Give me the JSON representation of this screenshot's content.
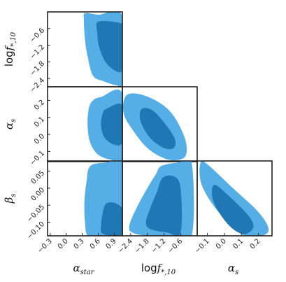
{
  "colors": {
    "outer_contour": "#56aee6",
    "inner_contour": "#1f78b4",
    "frame": "#222222"
  },
  "chart_data": {
    "type": "corner",
    "parameters": [
      {
        "id": "alpha_star",
        "label": "α",
        "label_sub": "star",
        "range": [
          -0.35,
          1.05
        ],
        "ticks": [
          "−0.3",
          "0.0",
          "0.3",
          "0.6",
          "0.9"
        ],
        "tick_values": [
          -0.3,
          0.0,
          0.3,
          0.6,
          0.9
        ]
      },
      {
        "id": "log_f_star_10",
        "label": "log",
        "label_main": "f",
        "label_sub": "*,10",
        "range": [
          -2.7,
          0.0
        ],
        "ticks": [
          "−2.4",
          "−1.8",
          "−1.2",
          "−0.6"
        ],
        "tick_values": [
          -2.4,
          -1.8,
          -1.2,
          -0.6
        ]
      },
      {
        "id": "alpha_s",
        "label": "α",
        "label_sub": "s",
        "range": [
          -0.16,
          0.28
        ],
        "ticks": [
          "−0.1",
          "0.0",
          "0.1",
          "0.2"
        ],
        "tick_values": [
          -0.1,
          0.0,
          0.1,
          0.2
        ]
      },
      {
        "id": "beta_s",
        "label": "β",
        "label_sub": "s",
        "range": [
          -0.14,
          0.08
        ],
        "ticks": [
          "−0.10",
          "−0.05",
          "0.00",
          "0.05"
        ],
        "tick_values": [
          -0.1,
          -0.05,
          0.0,
          0.05
        ]
      }
    ],
    "contour_levels": [
      "68%",
      "95%"
    ],
    "panels": [
      {
        "id": "logf-vs-alphastar",
        "x": "alpha_star",
        "y": "log_f_star_10",
        "outer": [
          [
            0.35,
            -0.05
          ],
          [
            0.6,
            -0.1
          ],
          [
            1.05,
            -0.15
          ],
          [
            1.05,
            -2.55
          ],
          [
            0.95,
            -2.65
          ],
          [
            0.7,
            -2.5
          ],
          [
            0.5,
            -2.3
          ],
          [
            0.4,
            -1.6
          ],
          [
            0.35,
            -1.0
          ],
          [
            0.33,
            -0.3
          ]
        ],
        "inner": [
          [
            0.6,
            -0.35
          ],
          [
            1.0,
            -0.4
          ],
          [
            1.05,
            -0.6
          ],
          [
            1.05,
            -2.0
          ],
          [
            0.95,
            -2.15
          ],
          [
            0.75,
            -1.85
          ],
          [
            0.62,
            -1.3
          ],
          [
            0.58,
            -0.75
          ]
        ]
      },
      {
        "id": "alphas-vs-alphastar",
        "x": "alpha_star",
        "y": "alpha_s",
        "outer": [
          [
            0.65,
            0.22
          ],
          [
            1.05,
            0.24
          ],
          [
            1.05,
            -0.15
          ],
          [
            0.85,
            -0.15
          ],
          [
            0.6,
            -0.12
          ],
          [
            0.45,
            -0.05
          ],
          [
            0.4,
            0.05
          ],
          [
            0.42,
            0.15
          ],
          [
            0.5,
            0.2
          ]
        ],
        "inner": [
          [
            0.75,
            0.15
          ],
          [
            1.05,
            0.17
          ],
          [
            1.05,
            -0.04
          ],
          [
            0.9,
            -0.06
          ],
          [
            0.72,
            -0.02
          ],
          [
            0.65,
            0.05
          ],
          [
            0.68,
            0.12
          ]
        ]
      },
      {
        "id": "betas-vs-alphastar",
        "x": "alpha_star",
        "y": "beta_s",
        "outer": [
          [
            0.45,
            0.065
          ],
          [
            0.75,
            0.075
          ],
          [
            1.05,
            0.075
          ],
          [
            1.05,
            -0.14
          ],
          [
            0.6,
            -0.14
          ],
          [
            0.4,
            -0.14
          ],
          [
            0.35,
            -0.1
          ],
          [
            0.34,
            -0.04
          ],
          [
            0.38,
            0.02
          ]
        ],
        "inner": [
          [
            0.75,
            -0.045
          ],
          [
            1.05,
            -0.06
          ],
          [
            1.05,
            -0.135
          ],
          [
            0.7,
            -0.135
          ],
          [
            0.65,
            -0.11
          ]
        ]
      },
      {
        "id": "alphas-vs-logf",
        "x": "log_f_star_10",
        "y": "alpha_s",
        "outer": [
          [
            -2.6,
            0.22
          ],
          [
            -2.2,
            0.24
          ],
          [
            -1.5,
            0.2
          ],
          [
            -0.9,
            0.12
          ],
          [
            -0.45,
            -0.02
          ],
          [
            -0.4,
            -0.12
          ],
          [
            -0.7,
            -0.15
          ],
          [
            -1.2,
            -0.14
          ],
          [
            -1.8,
            -0.08
          ],
          [
            -2.3,
            0.02
          ],
          [
            -2.65,
            0.12
          ]
        ],
        "inner": [
          [
            -2.0,
            0.15
          ],
          [
            -1.6,
            0.14
          ],
          [
            -1.1,
            0.05
          ],
          [
            -0.8,
            -0.03
          ],
          [
            -0.85,
            -0.08
          ],
          [
            -1.2,
            -0.08
          ],
          [
            -1.7,
            -0.02
          ],
          [
            -2.05,
            0.08
          ]
        ]
      },
      {
        "id": "betas-vs-logf",
        "x": "log_f_star_10",
        "y": "beta_s",
        "outer": [
          [
            -1.3,
            0.065
          ],
          [
            -0.7,
            0.075
          ],
          [
            -0.2,
            0.075
          ],
          [
            -0.2,
            -0.14
          ],
          [
            -1.0,
            -0.14
          ],
          [
            -1.8,
            -0.14
          ],
          [
            -2.35,
            -0.13
          ],
          [
            -2.45,
            -0.11
          ],
          [
            -2.2,
            -0.06
          ],
          [
            -1.8,
            0.0
          ],
          [
            -1.5,
            0.04
          ]
        ],
        "inner": [
          [
            -1.25,
            0.03
          ],
          [
            -0.85,
            0.035
          ],
          [
            -0.6,
            0.0
          ],
          [
            -0.6,
            -0.13
          ],
          [
            -1.1,
            -0.13
          ],
          [
            -1.7,
            -0.12
          ],
          [
            -1.85,
            -0.1
          ],
          [
            -1.7,
            -0.06
          ],
          [
            -1.45,
            -0.01
          ]
        ]
      },
      {
        "id": "betas-vs-alphas",
        "x": "alpha_s",
        "y": "beta_s",
        "outer": [
          [
            -0.14,
            0.075
          ],
          [
            -0.1,
            0.07
          ],
          [
            0.05,
            0.0
          ],
          [
            0.2,
            -0.07
          ],
          [
            0.26,
            -0.12
          ],
          [
            0.22,
            -0.14
          ],
          [
            0.12,
            -0.14
          ],
          [
            0.02,
            -0.1
          ],
          [
            -0.08,
            -0.04
          ],
          [
            -0.14,
            0.02
          ]
        ],
        "inner": [
          [
            -0.06,
            0.01
          ],
          [
            0.02,
            -0.02
          ],
          [
            0.14,
            -0.08
          ],
          [
            0.17,
            -0.115
          ],
          [
            0.12,
            -0.135
          ],
          [
            0.05,
            -0.12
          ],
          [
            -0.02,
            -0.08
          ],
          [
            -0.07,
            -0.03
          ]
        ]
      }
    ]
  }
}
